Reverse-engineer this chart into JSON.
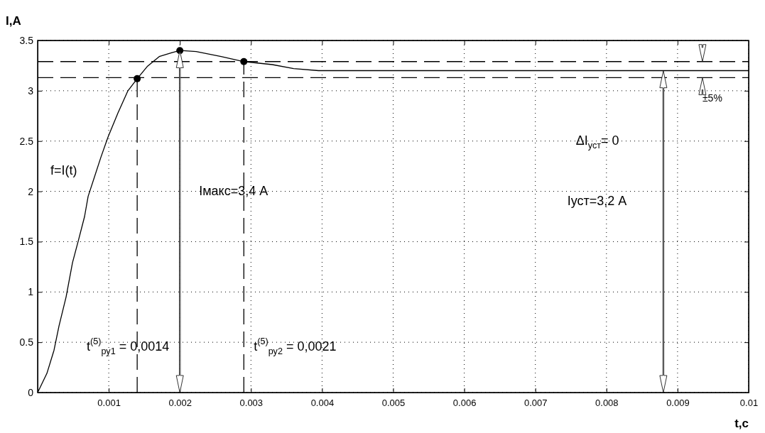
{
  "chart_data": {
    "type": "line",
    "xlabel": "t,c",
    "ylabel": "I,A",
    "xlim": [
      0,
      0.01
    ],
    "ylim": [
      0,
      3.5
    ],
    "xticks": [
      0.001,
      0.002,
      0.003,
      0.004,
      0.005,
      0.006,
      0.007,
      0.008,
      0.009,
      0.01
    ],
    "yticks": [
      0,
      0.5,
      1,
      1.5,
      2,
      2.5,
      3,
      3.5
    ],
    "grid": true,
    "marker": "none",
    "line_style": "solid",
    "series": [
      {
        "color": "#000000",
        "x": [
          0,
          0.00013,
          0.00023,
          0.0003,
          0.0004,
          0.00049,
          0.00058,
          0.00066,
          0.00071,
          0.00089,
          0.00099,
          0.00113,
          0.00127,
          0.0014,
          0.00154,
          0.00171,
          0.00189,
          0.002,
          0.00223,
          0.00258,
          0.0029,
          0.0033,
          0.0036,
          0.00395,
          0.0051,
          0.0052,
          0.01
        ],
        "values": [
          0,
          0.19,
          0.42,
          0.66,
          0.95,
          1.29,
          1.53,
          1.75,
          1.95,
          2.34,
          2.54,
          2.78,
          3.0,
          3.12,
          3.24,
          3.34,
          3.38,
          3.4,
          3.39,
          3.34,
          3.29,
          3.26,
          3.22,
          3.2,
          3.2,
          3.2,
          3.2
        ]
      },
      {
        "type": "scatter",
        "marker": "circle",
        "color": "#000000",
        "x": [
          0.0014,
          0.002,
          0.0029
        ],
        "values": [
          3.12,
          3.4,
          3.29
        ]
      },
      {
        "color": "#000000",
        "line_style": "dashed",
        "x": [
          0.0014,
          0.0014
        ],
        "values": [
          0,
          3.12
        ]
      },
      {
        "color": "#000000",
        "line_style": "dashed",
        "x": [
          0.0029,
          0.0029
        ],
        "values": [
          0,
          3.29
        ]
      }
    ],
    "ref_lines": [
      {
        "axis": "y",
        "value": 3.29,
        "line_style": "dashed",
        "color": "#000000"
      },
      {
        "axis": "y",
        "value": 3.13,
        "line_style": "dashed",
        "color": "#000000"
      }
    ],
    "annotations": [
      "f=I(t)",
      "Iмакс=3,4 A",
      "Iуст=3,2 A",
      "ΔI$_{уст}$= 0",
      {
        "text": "±5%",
        "x": 0.00935,
        "y": 3.13
      },
      "t$^{(5)}$$_{ру1}$ = 0,0014",
      "t$^{(5)}$$_{ру2}$ = 0,0021"
    ]
  }
}
